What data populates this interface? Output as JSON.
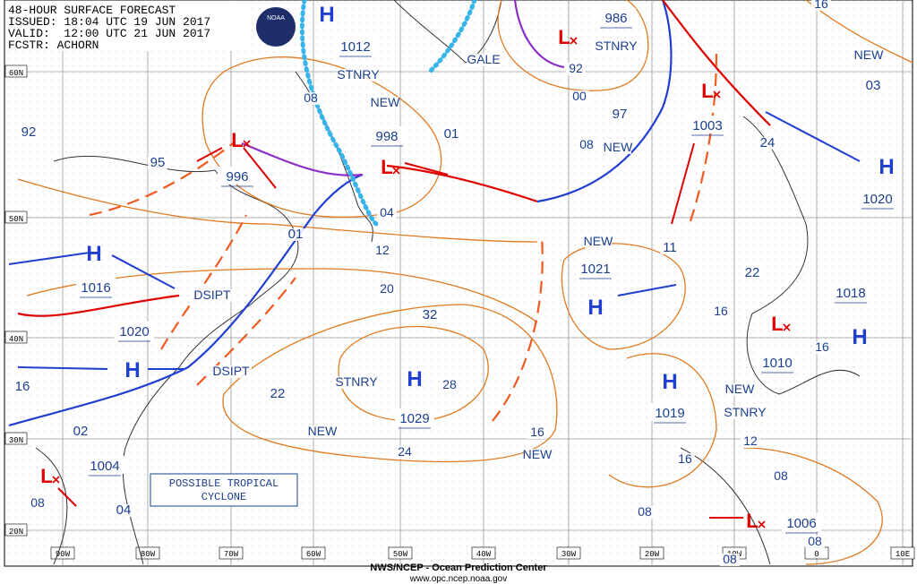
{
  "header": {
    "lines": [
      "48-HOUR SURFACE FORECAST",
      "ISSUED: 18:04 UTC 19 JUN 2017",
      "VALID:  12:00 UTC 21 JUN 2017",
      "FCSTR: ACHORN"
    ]
  },
  "logo": "NOAA",
  "footer": {
    "agency": "NWS/NCEP - Ocean Prediction Center",
    "url": "www.opc.ncep.noaa.gov"
  },
  "latitudes": [
    "60N",
    "50N",
    "40N",
    "30N",
    "20N"
  ],
  "longitudes": [
    "90W",
    "80W",
    "70W",
    "60W",
    "50W",
    "40W",
    "30W",
    "20W",
    "10W",
    "0",
    "10E"
  ],
  "systems": [
    {
      "symbol": "H",
      "pressure": "1012"
    },
    {
      "symbol": "H",
      "pressure": "1016"
    },
    {
      "symbol": "H",
      "pressure": "1020"
    },
    {
      "symbol": "H",
      "pressure": "1029"
    },
    {
      "symbol": "H",
      "pressure": "1021"
    },
    {
      "symbol": "H",
      "pressure": "1019"
    },
    {
      "symbol": "H",
      "pressure": "1020"
    },
    {
      "symbol": "H",
      "pressure": "1018"
    },
    {
      "symbol": "L",
      "pressure": "996"
    },
    {
      "symbol": "L",
      "pressure": "998"
    },
    {
      "symbol": "L",
      "pressure": "986"
    },
    {
      "symbol": "L",
      "pressure": "1003"
    },
    {
      "symbol": "L",
      "pressure": "1010"
    },
    {
      "symbol": "L",
      "pressure": "1004"
    },
    {
      "symbol": "L",
      "pressure": "1006"
    }
  ],
  "labels": [
    "92",
    "95",
    "01",
    "01",
    "97",
    "NEW",
    "STNRY",
    "GALE",
    "STNRY",
    "00",
    "08",
    "NEW",
    "92",
    "08",
    "04",
    "12",
    "20",
    "32",
    "28",
    "24",
    "STNRY",
    "NEW",
    "22",
    "NEW",
    "11",
    "22",
    "16",
    "16",
    "NEW",
    "STNRY",
    "12",
    "16",
    "08",
    "08",
    "08",
    "08",
    "16",
    "NEW",
    "03",
    "NEW",
    "16",
    "24",
    "DSIPT",
    "DSIPT",
    "16",
    "02",
    "04",
    "08"
  ],
  "callout": {
    "lines": [
      "POSSIBLE TROPICAL",
      "CYCLONE"
    ]
  }
}
